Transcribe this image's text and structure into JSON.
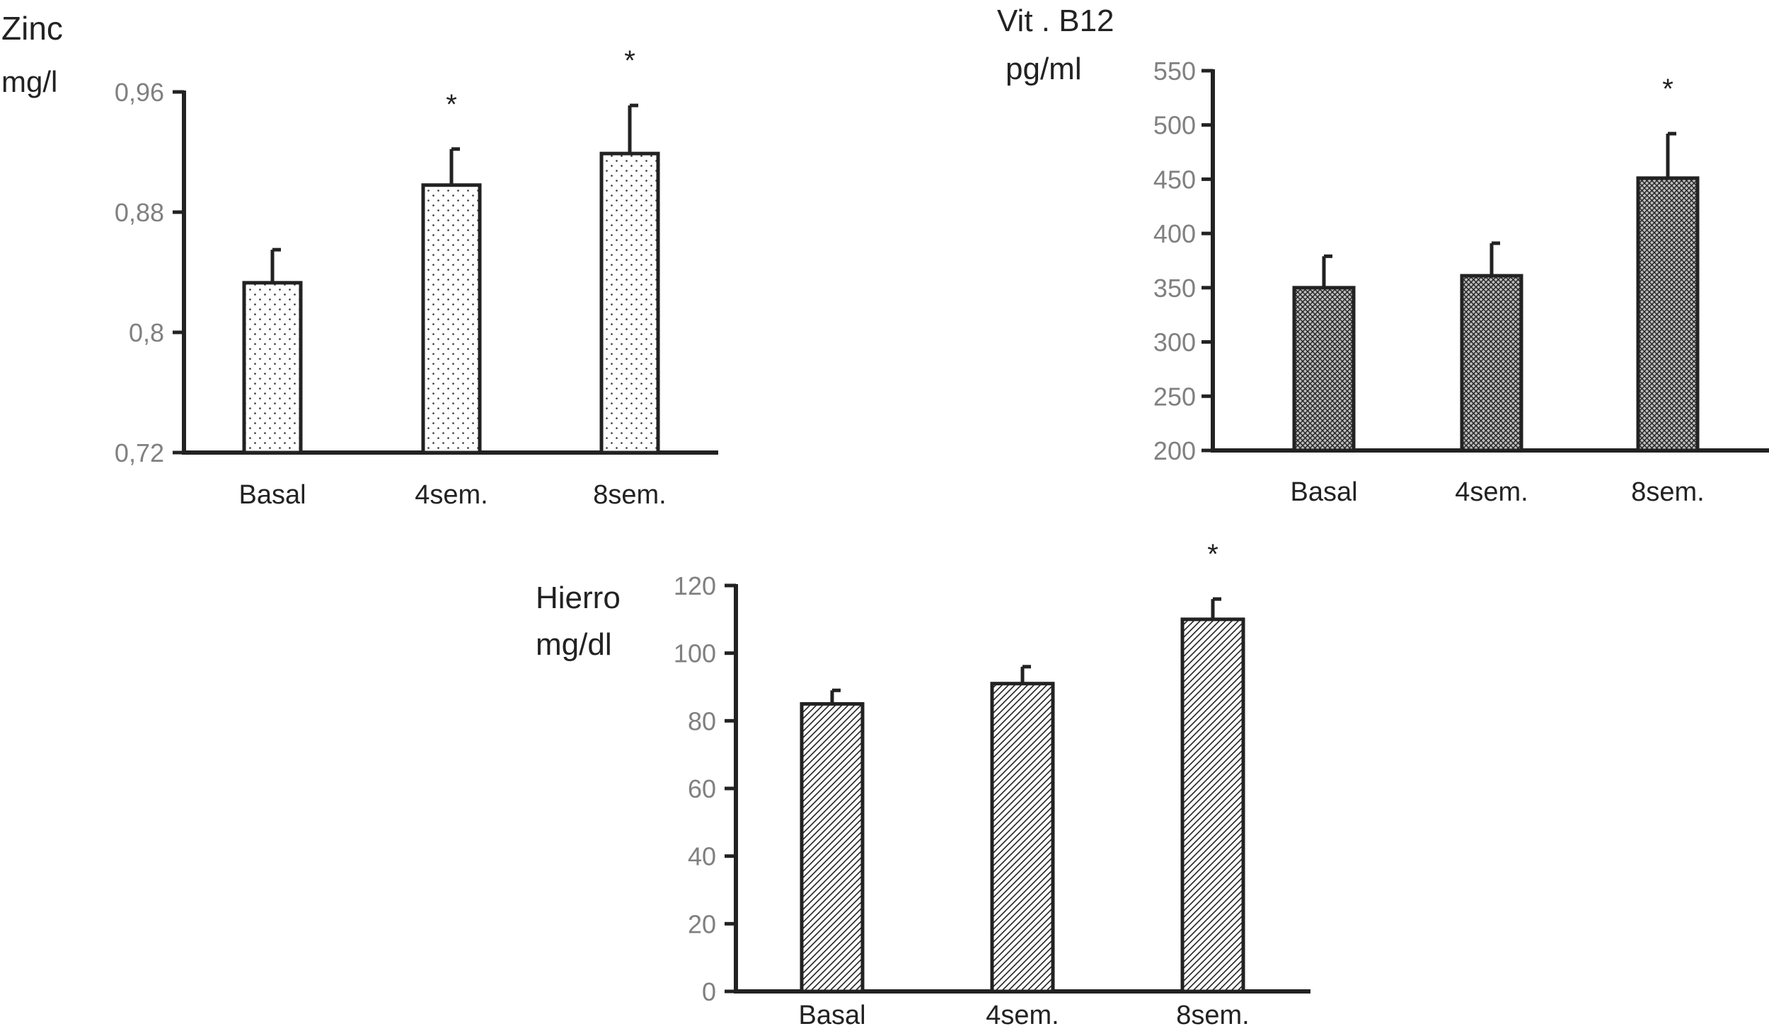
{
  "chart_data": [
    {
      "type": "bar",
      "ylabel": "Zinc",
      "yunit": "mg/l",
      "categories": [
        "Basal",
        "4sem.",
        "8sem."
      ],
      "values": [
        0.833,
        0.898,
        0.919
      ],
      "errors": [
        0.022,
        0.024,
        0.032
      ],
      "significance": [
        "",
        "*",
        "*"
      ],
      "ylim": [
        0.72,
        0.96
      ],
      "yticks": [
        0.72,
        0.8,
        0.88,
        0.96
      ],
      "ytick_labels": [
        "0,72",
        "0,8",
        "0,88",
        "0,96"
      ],
      "pattern": "dots",
      "grid": false
    },
    {
      "type": "bar",
      "ylabel": "Vit . B12",
      "yunit": "pg/ml",
      "categories": [
        "Basal",
        "4sem.",
        "8sem."
      ],
      "values": [
        350,
        361,
        451
      ],
      "errors": [
        29,
        30,
        41
      ],
      "significance": [
        "",
        "",
        "*"
      ],
      "ylim": [
        200,
        550
      ],
      "yticks": [
        200,
        250,
        300,
        350,
        400,
        450,
        500,
        550
      ],
      "ytick_labels": [
        "200",
        "250",
        "300",
        "350",
        "400",
        "450",
        "500",
        "550"
      ],
      "pattern": "crosshatch",
      "grid": false
    },
    {
      "type": "bar",
      "ylabel": "Hierro",
      "yunit": "mg/dl",
      "categories": [
        "Basal",
        "4sem.",
        "8sem."
      ],
      "values": [
        85,
        91,
        110
      ],
      "errors": [
        4,
        5,
        6
      ],
      "significance": [
        "",
        "",
        "*"
      ],
      "ylim": [
        0,
        120
      ],
      "yticks": [
        0,
        20,
        40,
        60,
        80,
        100,
        120
      ],
      "ytick_labels": [
        "0",
        "20",
        "40",
        "60",
        "80",
        "100",
        "120"
      ],
      "pattern": "diagonal",
      "grid": false
    }
  ]
}
